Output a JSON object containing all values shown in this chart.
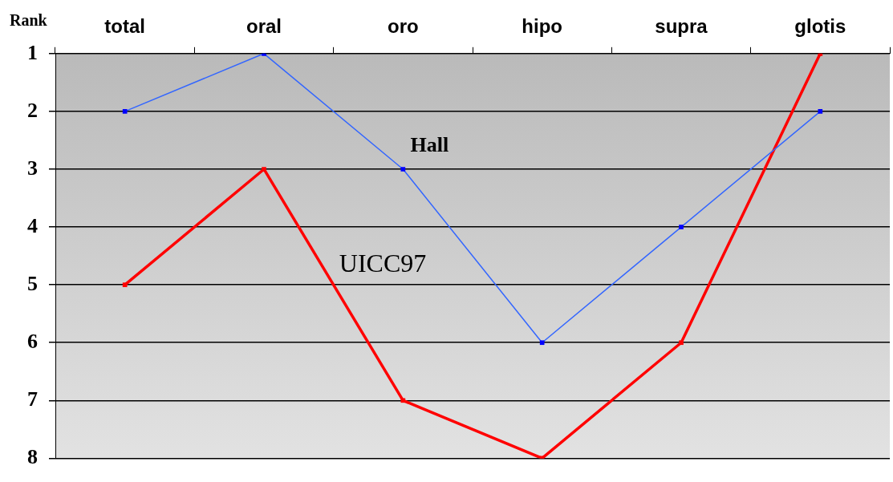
{
  "chart_data": {
    "type": "line",
    "ylabel": "Rank",
    "categories": [
      "total",
      "oral",
      "oro",
      "hipo",
      "supra",
      "glotis"
    ],
    "series": [
      {
        "name": "Hall",
        "color": "#3366ff",
        "values": [
          2,
          1,
          3,
          6,
          4,
          2
        ]
      },
      {
        "name": "UICC97",
        "color": "#ff0000",
        "values": [
          5,
          3,
          7,
          8,
          6,
          1
        ]
      }
    ],
    "ylim": [
      8,
      1
    ],
    "yticks": [
      1,
      2,
      3,
      4,
      5,
      6,
      7,
      8
    ],
    "grid": "y",
    "legend": false,
    "marker": "square",
    "line_style": "solid"
  }
}
